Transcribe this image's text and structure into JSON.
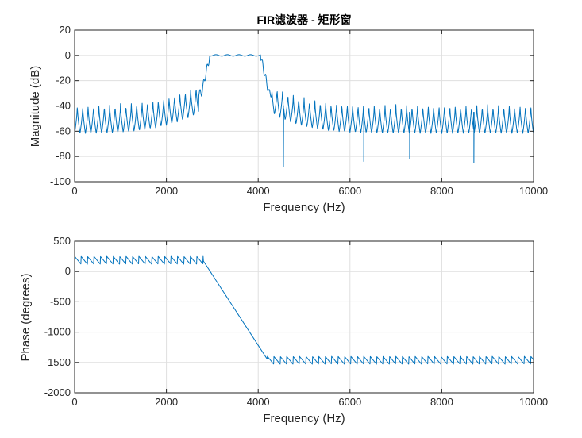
{
  "chart_data": [
    {
      "type": "line",
      "title": "FIR滤波器 - 矩形窗",
      "xlabel": "Frequency (Hz)",
      "ylabel": "Magnitude (dB)",
      "xlim": [
        0,
        10000
      ],
      "ylim": [
        -100,
        20
      ],
      "xticks": [
        0,
        2000,
        4000,
        6000,
        8000,
        10000
      ],
      "yticks": [
        20,
        0,
        -20,
        -40,
        -60,
        -80,
        -100
      ],
      "grid": true,
      "color": "#0072bd",
      "series": [
        {
          "x": [
            0,
            2600,
            2800,
            2900,
            3000,
            3500,
            4000,
            4100,
            4200,
            4500,
            4550,
            6300,
            7300,
            8700,
            10000
          ],
          "y": [
            -45,
            -28,
            -18,
            -5,
            0,
            0,
            0,
            -5,
            -18,
            -40,
            -88,
            -84,
            -82,
            -85,
            -45
          ]
        }
      ]
    },
    {
      "type": "line",
      "title": "",
      "xlabel": "Frequency (Hz)",
      "ylabel": "Phase (degrees)",
      "xlim": [
        0,
        10000
      ],
      "ylim": [
        -2000,
        500
      ],
      "xticks": [
        0,
        2000,
        4000,
        6000,
        8000,
        10000
      ],
      "yticks": [
        500,
        0,
        -500,
        -1000,
        -1500,
        -2000
      ],
      "grid": true,
      "color": "#0072bd",
      "series": [
        {
          "x": [
            0,
            2800,
            4200,
            10000
          ],
          "y": [
            180,
            180,
            -1450,
            -1450
          ]
        }
      ]
    }
  ]
}
